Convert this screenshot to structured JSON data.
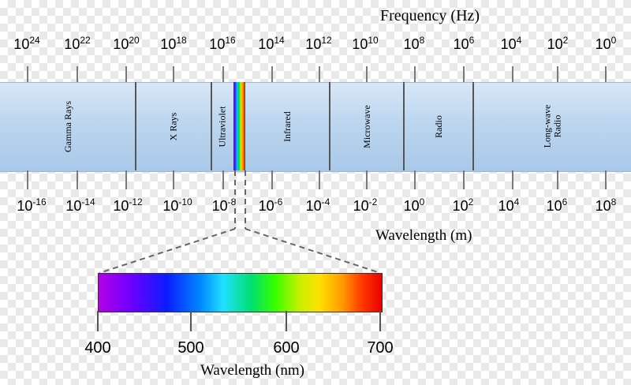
{
  "frequency_axis": {
    "title": "Frequency (Hz)",
    "labels": [
      {
        "base": "10",
        "exp": "24"
      },
      {
        "base": "10",
        "exp": "22"
      },
      {
        "base": "10",
        "exp": "20"
      },
      {
        "base": "10",
        "exp": "18"
      },
      {
        "base": "10",
        "exp": "16"
      },
      {
        "base": "10",
        "exp": "14"
      },
      {
        "base": "10",
        "exp": "12"
      },
      {
        "base": "10",
        "exp": "10"
      },
      {
        "base": "10",
        "exp": "8"
      },
      {
        "base": "10",
        "exp": "6"
      },
      {
        "base": "10",
        "exp": "4"
      },
      {
        "base": "10",
        "exp": "2"
      },
      {
        "base": "10",
        "exp": "0"
      }
    ]
  },
  "regions": [
    {
      "label": "Gamma Rays"
    },
    {
      "label": "X Rays"
    },
    {
      "label": "Ultraviolet"
    },
    {
      "label": "Infrared"
    },
    {
      "label": "Microwave"
    },
    {
      "label": "Radio"
    },
    {
      "label": "Long-wave\nRadio"
    }
  ],
  "wavelength_axis": {
    "title": "Wavelength (m)",
    "labels": [
      {
        "base": "10",
        "exp": "-16"
      },
      {
        "base": "10",
        "exp": "-14"
      },
      {
        "base": "10",
        "exp": "-12"
      },
      {
        "base": "10",
        "exp": "-10"
      },
      {
        "base": "10",
        "exp": "-8"
      },
      {
        "base": "10",
        "exp": "-6"
      },
      {
        "base": "10",
        "exp": "-4"
      },
      {
        "base": "10",
        "exp": "-2"
      },
      {
        "base": "10",
        "exp": "0"
      },
      {
        "base": "10",
        "exp": "2"
      },
      {
        "base": "10",
        "exp": "4"
      },
      {
        "base": "10",
        "exp": "6"
      },
      {
        "base": "10",
        "exp": "8"
      }
    ]
  },
  "visible_spectrum": {
    "title": "Wavelength (nm)",
    "labels": [
      "400",
      "500",
      "600",
      "700"
    ]
  }
}
